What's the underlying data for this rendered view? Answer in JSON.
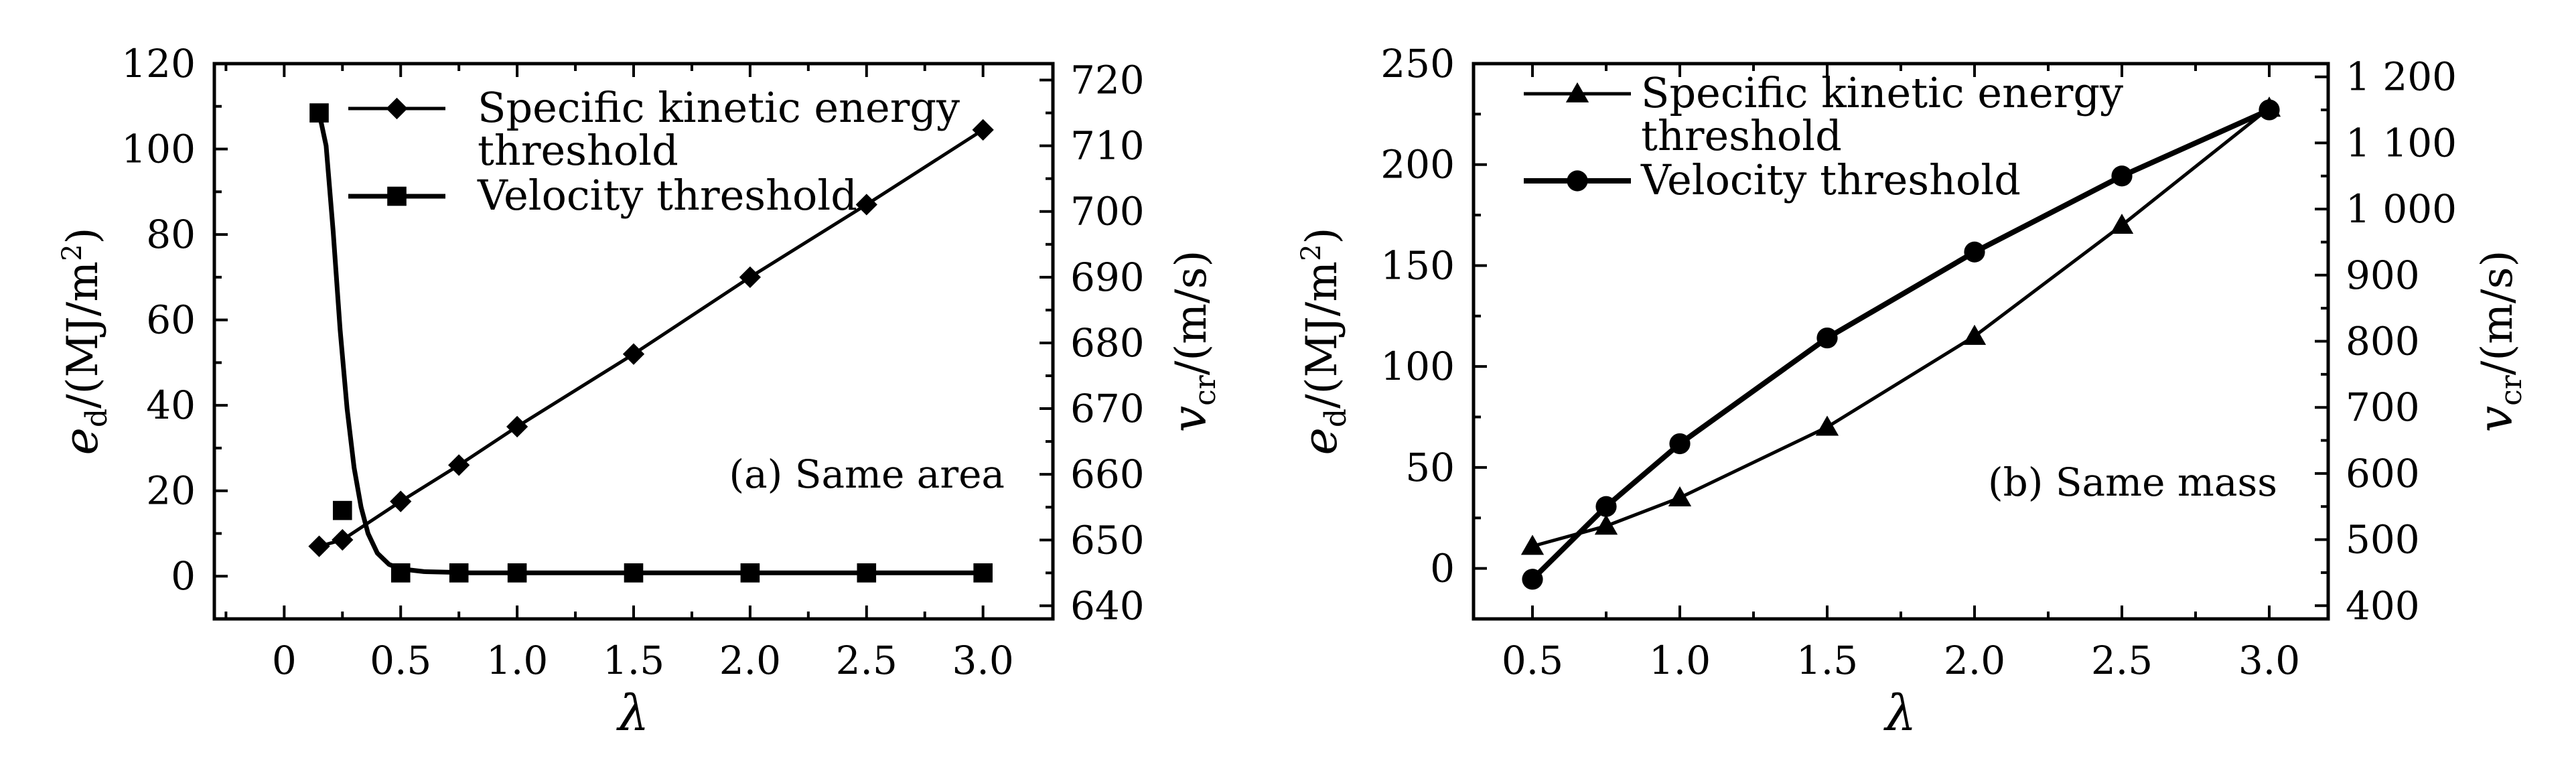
{
  "chart_data": [
    {
      "type": "line",
      "panel_label": "(a) Same area",
      "xlabel": "λ",
      "ylabel_left": {
        "symbol": "e",
        "sub": "d",
        "unit": "/(MJ/m",
        "sup": "2",
        "close": ")"
      },
      "ylabel_right": {
        "symbol": "v",
        "sub": "cr",
        "unit": "/(m/s)"
      },
      "xlim": [
        -0.3,
        3.3
      ],
      "ylim_left": [
        -10,
        120
      ],
      "ylim_right": [
        638,
        722.5
      ],
      "x_ticks": [
        0,
        0.5,
        1.0,
        1.5,
        2.0,
        2.5,
        3.0
      ],
      "x_tick_labels": [
        "0",
        "0.5",
        "1.0",
        "1.5",
        "2.0",
        "2.5",
        "3.0"
      ],
      "y_left_ticks": [
        0,
        20,
        40,
        60,
        80,
        100,
        120
      ],
      "y_left_tick_labels": [
        "0",
        "20",
        "40",
        "60",
        "80",
        "100",
        "120"
      ],
      "y_right_ticks": [
        640,
        650,
        660,
        670,
        680,
        690,
        700,
        710,
        720
      ],
      "y_right_tick_labels": [
        "640",
        "650",
        "660",
        "670",
        "680",
        "690",
        "700",
        "710",
        "720"
      ],
      "legend_position": "top-right",
      "series": [
        {
          "name": "Specific kinetic energy threshold",
          "name_lines": [
            "Specific kinetic energy",
            "threshold"
          ],
          "axis": "left",
          "marker": "diamond",
          "x": [
            0.15,
            0.25,
            0.5,
            0.75,
            1.0,
            1.5,
            2.0,
            2.5,
            3.0
          ],
          "y": [
            7,
            8.5,
            17.5,
            26,
            35,
            52,
            70,
            87,
            104.5
          ]
        },
        {
          "name": "Velocity threshold",
          "name_lines": [
            "Velocity threshold"
          ],
          "axis": "right",
          "marker": "square",
          "x": [
            0.15,
            0.25,
            0.5,
            0.75,
            1.0,
            1.5,
            2.0,
            2.5,
            3.0
          ],
          "y": [
            715,
            654.5,
            645,
            645,
            645,
            645,
            645,
            645,
            645
          ],
          "curve_x": [
            0.15,
            0.18,
            0.21,
            0.24,
            0.27,
            0.3,
            0.33,
            0.36,
            0.4,
            0.45,
            0.5,
            0.6,
            0.7,
            0.8,
            1.0,
            1.5,
            2.0,
            2.5,
            3.0
          ],
          "curve_y": [
            715,
            710,
            697,
            682,
            670,
            661,
            655,
            651,
            648,
            646.3,
            645.6,
            645.2,
            645.1,
            645,
            645,
            645,
            645,
            645,
            645
          ]
        }
      ]
    },
    {
      "type": "line",
      "panel_label": "(b) Same mass",
      "xlabel": "λ",
      "ylabel_left": {
        "symbol": "e",
        "sub": "d",
        "unit": "/(MJ/m",
        "sup": "2",
        "close": ")"
      },
      "ylabel_right": {
        "symbol": "v",
        "sub": "cr",
        "unit": "/(m/s)"
      },
      "xlim": [
        0.3,
        3.2
      ],
      "ylim_left": [
        -25,
        250
      ],
      "ylim_right": [
        380,
        1220
      ],
      "x_ticks": [
        0.5,
        1.0,
        1.5,
        2.0,
        2.5,
        3.0
      ],
      "x_tick_labels": [
        "0.5",
        "1.0",
        "1.5",
        "2.0",
        "2.5",
        "3.0"
      ],
      "y_left_ticks": [
        0,
        50,
        100,
        150,
        200,
        250
      ],
      "y_left_tick_labels": [
        "0",
        "50",
        "100",
        "150",
        "200",
        "250"
      ],
      "y_right_ticks": [
        400,
        500,
        600,
        700,
        800,
        900,
        1000,
        1100,
        1200
      ],
      "y_right_tick_labels": [
        "400",
        "500",
        "600",
        "700",
        "800",
        "900",
        "1 000",
        "1 100",
        "1 200"
      ],
      "legend_position": "top-left",
      "series": [
        {
          "name": "Specific kinetic energy threshold",
          "name_lines": [
            "Specific kinetic energy",
            "threshold"
          ],
          "axis": "left",
          "marker": "triangle",
          "x": [
            0.5,
            0.75,
            1.0,
            1.5,
            2.0,
            2.5,
            3.0
          ],
          "y": [
            11,
            21,
            35,
            70,
            115,
            170,
            228
          ]
        },
        {
          "name": "Velocity threshold",
          "name_lines": [
            "Velocity threshold"
          ],
          "axis": "right",
          "marker": "circle",
          "x": [
            0.5,
            0.75,
            1.0,
            1.5,
            2.0,
            2.5,
            3.0
          ],
          "y": [
            440,
            550,
            645,
            805,
            935,
            1050,
            1150
          ]
        }
      ]
    }
  ]
}
